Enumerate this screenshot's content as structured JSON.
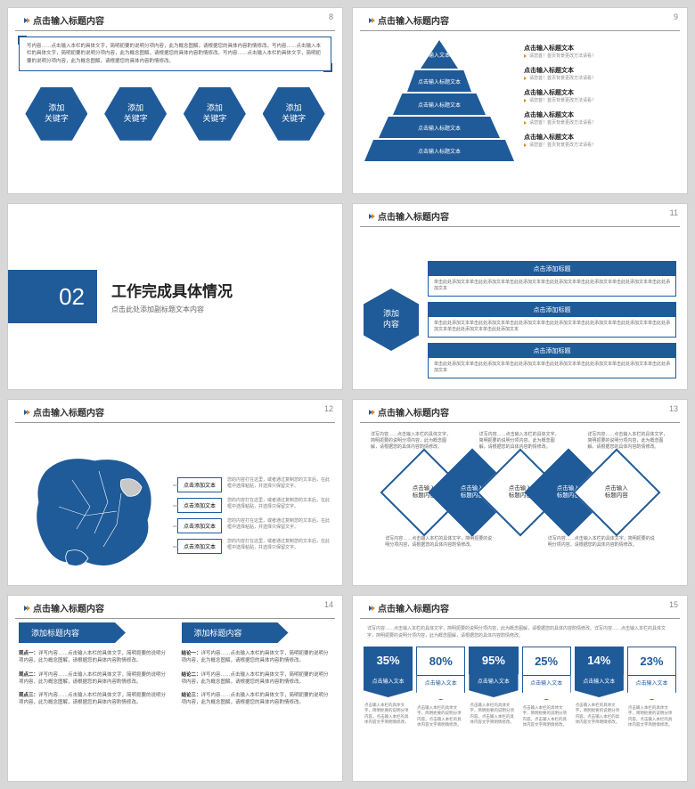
{
  "colors": {
    "primary": "#1f5a99",
    "accent": "#d98a2b",
    "text": "#333333",
    "muted": "#888888",
    "border": "#cccccc",
    "bg": "#d8d8d8"
  },
  "common": {
    "header_title": "点击输入标题内容"
  },
  "slide8": {
    "page": "8",
    "callout": "写内容……点击输入本栏的具体文字，简明扼要的说明分项内容，此为概念图解，请根据您的具体内容酌情修改。写内容……点击输入本栏的具体文字，简明扼要的说明分项内容，此为概念图解，请根据您的具体内容酌情修改。写内容……点击输入本栏的具体文字，简明扼要的说明分项内容，此为概念图解，请根据您的具体内容酌情修改。",
    "hexes": [
      "添加\n关键字",
      "添加\n关键字",
      "添加\n关键字",
      "添加\n关键字"
    ]
  },
  "slide9": {
    "page": "9",
    "levels": [
      "输入文本",
      "点击输入标题文本",
      "点击输入标题文本",
      "点击输入标题文本",
      "点击输入标题文本"
    ],
    "right_header": {
      "title": "点击输入标题文本",
      "sub": "请您首！首页背景更改方法请看！"
    },
    "items": [
      {
        "title": "点击输入标题文本",
        "sub": "请您首！首页背景更改方法请看！"
      },
      {
        "title": "点击输入标题文本",
        "sub": "请您首！首页背景更改方法请看！"
      },
      {
        "title": "点击输入标题文本",
        "sub": "请您首！首页背景更改方法请看！"
      },
      {
        "title": "点击输入标题文本",
        "sub": "请您首！首页背景更改方法请看！"
      }
    ]
  },
  "slide10": {
    "num": "02",
    "title": "工作完成具体情况",
    "sub": "点击此处添加副标题文本内容"
  },
  "slide11": {
    "page": "11",
    "hex": "添加\n内容",
    "boxes": [
      {
        "h": "点击添加标题",
        "b": "单击此处添加文本单击此处添加文本单击此处添加文本单击此处添加文本单击此处添加文本单击此处添加文本单击此处添加文本"
      },
      {
        "h": "点击添加标题",
        "b": "单击此处添加文本单击此处添加文本单击此处添加文本单击此处添加文本单击此处添加文本单击此处添加文本单击此处添加文本单击此处添加文本单击此处添加文本"
      },
      {
        "h": "点击添加标题",
        "b": "单击此处添加文本单击此处添加文本单击此处添加文本单击此处添加文本单击此处添加文本单击此处添加文本单击此处添加文本"
      }
    ]
  },
  "slide12": {
    "page": "12",
    "map_fill": "#1f5a99",
    "map_fill_light": "#c8c8c8",
    "rows": [
      {
        "label": "点击添加文本",
        "desc": "您的内容打在这里，或者通过复制您的文本后，在此框中选择粘贴，并选择只保留文字。"
      },
      {
        "label": "点击添加文本",
        "desc": "您的内容打在这里，或者通过复制您的文本后，在此框中选择粘贴，并选择只保留文字。"
      },
      {
        "label": "点击添加文本",
        "desc": "您的内容打在这里，或者通过复制您的文本后，在此框中选择粘贴，并选择只保留文字。"
      },
      {
        "label": "点击添加文本",
        "desc": "您的内容打在这里，或者通过复制您的文本后，在此框中选择粘贴，并选择只保留文字。"
      }
    ]
  },
  "slide13": {
    "page": "13",
    "top_texts": [
      "详写内容……点击输入本栏的具体文字，简明扼要的说明分项内容，此为概念图解，请根据您的具体内容酌情修改。",
      "详写内容……点击输入本栏的具体文字，简明扼要的说明分项内容，此为概念图解，请根据您的具体内容酌情修改。",
      "详写内容……点击输入本栏的具体文字，简明扼要的说明分项内容，此为概念图解，请根据您的具体内容酌情修改。"
    ],
    "diamonds": [
      {
        "label": "点击输入\n标题内容",
        "filled": false
      },
      {
        "label": "点击输入\n标题内容",
        "filled": true
      },
      {
        "label": "点击输入\n标题内容",
        "filled": false
      },
      {
        "label": "点击输入\n标题内容",
        "filled": true
      },
      {
        "label": "点击输入\n标题内容",
        "filled": false
      }
    ],
    "bottom_texts": [
      "详写内容……点击输入本栏的具体文字，简明扼要的说明分项内容，请根据您的具体内容酌情修改。",
      "详写内容……点击输入本栏的具体文字，简明扼要的说明分项内容，请根据您的具体内容酌情修改。"
    ]
  },
  "slide14": {
    "page": "14",
    "cols": [
      {
        "h": "添加标题内容",
        "items": [
          {
            "b": "观点一：",
            "t": "详写内容……点击输入本栏的具体文字，简明扼要的说明分项内容，此为概念图解，请根据您的具体内容酌情修改。"
          },
          {
            "b": "观点二：",
            "t": "详写内容……点击输入本栏的具体文字，简明扼要的说明分项内容，此为概念图解，请根据您的具体内容酌情修改。"
          },
          {
            "b": "观点三：",
            "t": "详写内容……点击输入本栏的具体文字，简明扼要的说明分项内容，此为概念图解，请根据您的具体内容酌情修改。"
          }
        ]
      },
      {
        "h": "添加标题内容",
        "items": [
          {
            "b": "结论一：",
            "t": "详写内容……点击输入本栏的具体文字，简明扼要的说明分项内容，此为概念图解，请根据您的具体内容酌情修改。"
          },
          {
            "b": "结论二：",
            "t": "详写内容……点击输入本栏的具体文字，简明扼要的说明分项内容，此为概念图解，请根据您的具体内容酌情修改。"
          },
          {
            "b": "结论三：",
            "t": "详写内容……点击输入本栏的具体文字，简明扼要的说明分项内容，此为概念图解，请根据您的具体内容酌情修改。"
          }
        ]
      }
    ]
  },
  "slide15": {
    "page": "15",
    "top": "详写内容……点击输入本栏的具体文字，简明扼要的说明分项内容，此为概念图解，请根据您的具体内容酌情修改。详写内容……点击输入本栏的具体文字，简明扼要的说明分项内容，此为概念图解，请根据您的具体内容酌情修改。",
    "bars": [
      {
        "pct": "35%",
        "lbl": "点击输入文本",
        "outline": false
      },
      {
        "pct": "80%",
        "lbl": "点击输入文本",
        "outline": true
      },
      {
        "pct": "95%",
        "lbl": "点击输入文本",
        "outline": false
      },
      {
        "pct": "25%",
        "lbl": "点击输入文本",
        "outline": true
      },
      {
        "pct": "14%",
        "lbl": "点击输入文本",
        "outline": false
      },
      {
        "pct": "23%",
        "lbl": "点击输入文本",
        "outline": true
      }
    ],
    "sub": "点击输入本栏的具体文字，简明扼要的说明分项内容。点击输入本栏的具体内容文字简明情修改。"
  }
}
